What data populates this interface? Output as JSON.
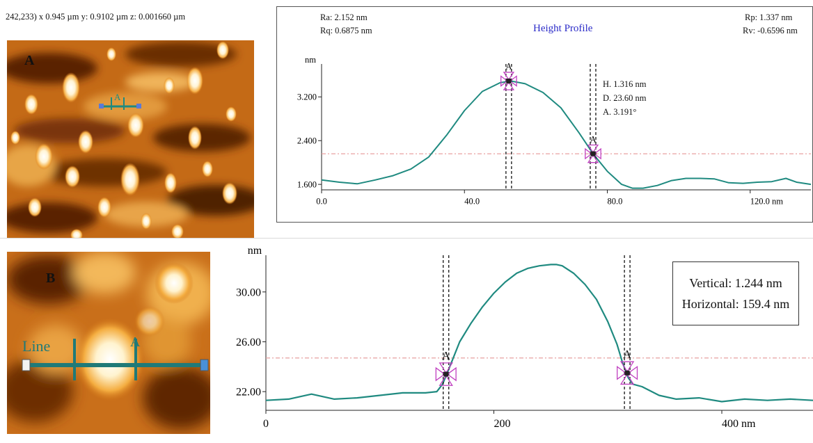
{
  "coords_readout": "242,233) x 0.945 µm  y: 0.9102 µm  z: 0.001660 µm",
  "panels": [
    {
      "letter": "A",
      "cursor_label": "A",
      "line_label": "",
      "arrow_label": ""
    },
    {
      "letter": "B",
      "cursor_label": "",
      "line_label": "Line",
      "arrow_label": "A"
    }
  ],
  "colors": {
    "profile": "#1f8a80",
    "reference_line": "#e8a0a0",
    "marker": "#c040c0",
    "title": "#2b2bc8"
  },
  "stats_a": {
    "ra": "Ra: 2.152 nm",
    "rq": "Rq: 0.6875 nm",
    "rp": "Rp: 1.337 nm",
    "rv": "Rv: -0.6596 nm",
    "title": "Height Profile",
    "h": "H. 1.316 nm",
    "d": "D. 23.60 nm",
    "a": "A. 3.191°"
  },
  "legend_b": {
    "vertical": "Vertical: 1.244 nm",
    "horizontal": "Horizontal: 159.4 nm"
  },
  "chart_data": [
    {
      "type": "line",
      "title": "Height Profile",
      "ylabel": "nm",
      "xlabel": "",
      "xlim": [
        0,
        137
      ],
      "ylim": [
        1.5,
        3.7
      ],
      "x_ticks": [
        0,
        40,
        80,
        120
      ],
      "x_tick_labels": [
        "0.0",
        "40.0",
        "80.0",
        "120.0 nm"
      ],
      "y_ticks": [
        1.6,
        2.4,
        3.2
      ],
      "y_tick_labels": [
        "1.600",
        "2.400",
        "3.200"
      ],
      "reference_y": 2.16,
      "markers": [
        {
          "label": "A",
          "x": 52.4,
          "y": 3.49
        },
        {
          "label": "A",
          "x": 76.0,
          "y": 2.16
        }
      ],
      "series": [
        {
          "x": [
            0,
            5,
            10,
            15,
            20,
            25,
            30,
            35,
            40,
            45,
            50,
            53,
            57,
            62,
            67,
            72,
            76,
            80,
            84,
            87,
            90,
            94,
            98,
            102,
            106,
            110,
            114,
            118,
            122,
            126,
            130,
            133,
            137
          ],
          "values": [
            1.68,
            1.64,
            1.61,
            1.68,
            1.76,
            1.88,
            2.1,
            2.5,
            2.95,
            3.3,
            3.46,
            3.49,
            3.44,
            3.28,
            3.0,
            2.55,
            2.16,
            1.84,
            1.6,
            1.53,
            1.53,
            1.58,
            1.67,
            1.71,
            1.71,
            1.7,
            1.63,
            1.62,
            1.64,
            1.65,
            1.71,
            1.64,
            1.6
          ]
        }
      ]
    },
    {
      "type": "line",
      "title": "",
      "ylabel": "nm",
      "xlabel": "",
      "xlim": [
        0,
        480
      ],
      "ylim": [
        20.5,
        32.5
      ],
      "x_ticks": [
        0,
        200,
        400
      ],
      "x_tick_labels": [
        "0",
        "200",
        "400 nm"
      ],
      "y_ticks": [
        22,
        26,
        30
      ],
      "y_tick_labels": [
        "22.00",
        "26.00",
        "30.00"
      ],
      "reference_y": 24.7,
      "markers": [
        {
          "label": "A",
          "x": 158,
          "y": 23.4
        },
        {
          "label": "A",
          "x": 317,
          "y": 23.5
        }
      ],
      "series": [
        {
          "x": [
            0,
            20,
            40,
            60,
            80,
            100,
            120,
            140,
            150,
            155,
            160,
            170,
            180,
            190,
            200,
            210,
            220,
            230,
            240,
            250,
            255,
            260,
            270,
            280,
            290,
            300,
            308,
            313,
            318,
            322,
            330,
            345,
            360,
            380,
            400,
            420,
            440,
            460,
            480
          ],
          "values": [
            21.3,
            21.4,
            21.8,
            21.4,
            21.5,
            21.7,
            21.9,
            21.9,
            22.0,
            22.6,
            23.7,
            26.0,
            27.5,
            28.8,
            29.9,
            30.8,
            31.5,
            31.9,
            32.1,
            32.2,
            32.2,
            32.1,
            31.5,
            30.6,
            29.4,
            27.6,
            25.8,
            24.3,
            23.1,
            22.6,
            22.4,
            21.7,
            21.4,
            21.5,
            21.2,
            21.4,
            21.3,
            21.4,
            21.3
          ]
        }
      ]
    }
  ]
}
